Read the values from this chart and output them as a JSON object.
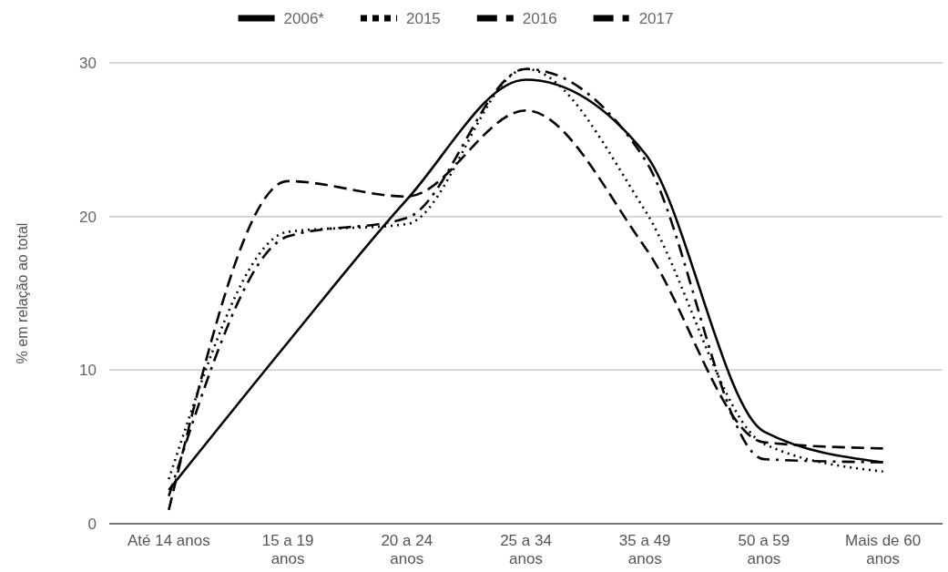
{
  "chart_data": {
    "type": "line",
    "ylabel": "% em relação ao total",
    "categories": [
      "Até 14 anos",
      "15 a 19 anos",
      "20 a 24 anos",
      "25 a 34 anos",
      "35 a 49 anos",
      "50 a 59 anos",
      "Mais de 60 anos"
    ],
    "ylim": [
      0,
      30
    ],
    "yticks": [
      0,
      10,
      20,
      30
    ],
    "grid": "y",
    "legend": "top",
    "marker": "none",
    "series": [
      {
        "name": "2006*",
        "color": "#000000",
        "line_style": "solid",
        "values": [
          2.2,
          11.8,
          21.1,
          28.9,
          24.1,
          6.0,
          4.0
        ]
      },
      {
        "name": "2015",
        "color": "#000000",
        "line_style": "dotted",
        "values": [
          2.9,
          19.0,
          19.5,
          29.6,
          20.4,
          5.2,
          3.4
        ]
      },
      {
        "name": "2016",
        "color": "#000000",
        "line_style": "dashed",
        "values": [
          0.9,
          22.3,
          21.3,
          26.9,
          18.0,
          5.3,
          4.9
        ]
      },
      {
        "name": "2017",
        "color": "#000000",
        "line_style": "dashdot",
        "values": [
          1.8,
          18.7,
          19.9,
          29.6,
          23.7,
          4.2,
          4.0
        ]
      }
    ]
  }
}
